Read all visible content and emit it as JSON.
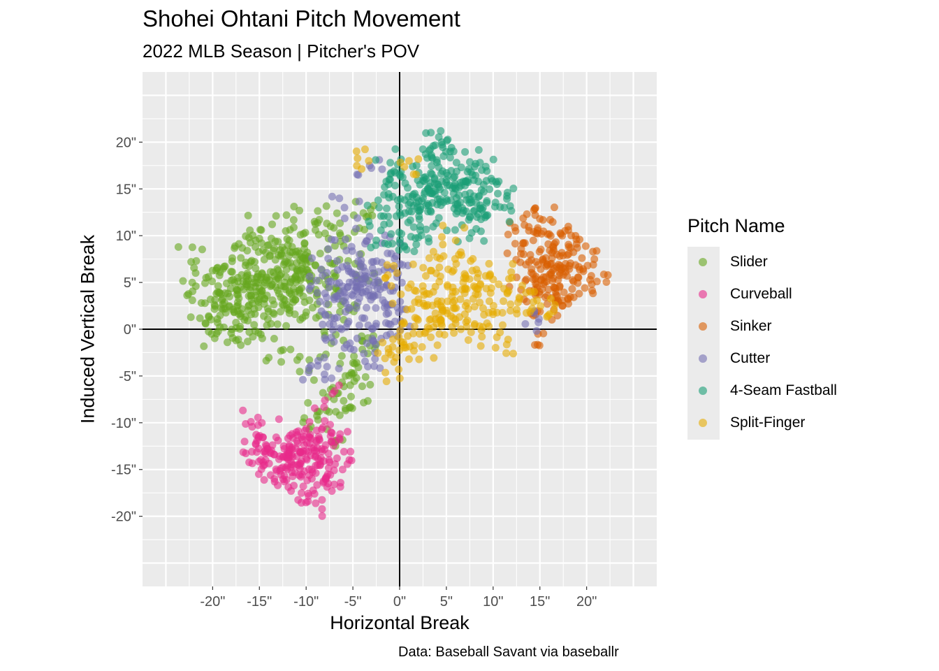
{
  "chart_data": {
    "type": "scatter",
    "title": "Shohei Ohtani Pitch Movement",
    "subtitle": "2022 MLB Season | Pitcher's POV",
    "xlabel": "Horizontal Break",
    "ylabel": "Induced Vertical Break",
    "caption": "Data: Baseball Savant via baseballr",
    "xlim": [
      -27.5,
      27.5
    ],
    "ylim": [
      -27.5,
      27.5
    ],
    "x_ticks": [
      "-20\"",
      "-15\"",
      "-10\"",
      "-5\"",
      "0\"",
      "5\"",
      "10\"",
      "15\"",
      "20\""
    ],
    "y_ticks": [
      "20\"",
      "15\"",
      "10\"",
      "5\"",
      "0\"",
      "-5\"",
      "-10\"",
      "-15\"",
      "-20\""
    ],
    "grid": true,
    "legend_title": "Pitch Name",
    "legend_position": "right",
    "series": [
      {
        "name": "Slider",
        "color": "#66a61e",
        "points": [
          [
            -22.3,
            7.2
          ],
          [
            -21.8,
            4.6
          ],
          [
            -21.2,
            2.8
          ],
          [
            -20.7,
            5.5
          ],
          [
            -20.4,
            1.3
          ],
          [
            -20.1,
            -0.5
          ],
          [
            -19.6,
            3.8
          ],
          [
            -19.2,
            6.1
          ],
          [
            -18.8,
            0.2
          ],
          [
            -18.5,
            4.9
          ],
          [
            -18.2,
            2.4
          ],
          [
            -17.9,
            7.6
          ],
          [
            -17.5,
            -1.2
          ],
          [
            -17.2,
            3.3
          ],
          [
            -16.9,
            5.8
          ],
          [
            -16.6,
            1.0
          ],
          [
            -16.3,
            8.4
          ],
          [
            -16.0,
            4.2
          ],
          [
            -15.7,
            -0.8
          ],
          [
            -15.4,
            6.5
          ],
          [
            -15.1,
            2.9
          ],
          [
            -14.8,
            10.6
          ],
          [
            -14.5,
            4.7
          ],
          [
            -14.2,
            0.4
          ],
          [
            -13.9,
            7.8
          ],
          [
            -13.6,
            3.1
          ],
          [
            -13.3,
            9.4
          ],
          [
            -13.0,
            5.5
          ],
          [
            -12.7,
            -2.3
          ],
          [
            -12.4,
            6.9
          ],
          [
            -12.1,
            12.2
          ],
          [
            -11.8,
            4.1
          ],
          [
            -11.5,
            8.8
          ],
          [
            -11.2,
            1.6
          ],
          [
            -10.9,
            6.3
          ],
          [
            -10.6,
            10.1
          ],
          [
            -10.3,
            3.5
          ],
          [
            -10.0,
            7.4
          ],
          [
            -9.7,
            -4.4
          ],
          [
            -9.4,
            5.2
          ],
          [
            -9.1,
            11.5
          ],
          [
            -8.8,
            2.7
          ],
          [
            -8.5,
            8.1
          ],
          [
            -8.2,
            -6.8
          ],
          [
            -7.9,
            4.8
          ],
          [
            -7.6,
            9.7
          ],
          [
            -7.3,
            -1.5
          ],
          [
            -7.0,
            6.0
          ],
          [
            -6.7,
            12.4
          ],
          [
            -6.4,
            -9.2
          ],
          [
            -6.1,
            3.0
          ],
          [
            -5.8,
            -5.0
          ],
          [
            -5.5,
            7.3
          ],
          [
            -5.2,
            -7.2
          ],
          [
            -4.9,
            1.9
          ],
          [
            -4.6,
            -3.6
          ],
          [
            -4.3,
            10.8
          ],
          [
            -4.0,
            -6.1
          ],
          [
            -3.7,
            5.4
          ],
          [
            -3.4,
            -2.6
          ],
          [
            -3.1,
            12.8
          ],
          [
            -2.8,
            -0.7
          ],
          [
            -17.0,
            4.5
          ],
          [
            -16.4,
            5.1
          ],
          [
            -15.9,
            3.6
          ],
          [
            -15.3,
            4.0
          ],
          [
            -14.7,
            5.9
          ],
          [
            -14.1,
            2.2
          ],
          [
            -13.5,
            6.1
          ],
          [
            -12.9,
            3.8
          ],
          [
            -12.3,
            5.0
          ],
          [
            -11.7,
            7.1
          ],
          [
            -11.1,
            5.6
          ],
          [
            -10.5,
            4.4
          ],
          [
            -16.2,
            2.0
          ],
          [
            -18.0,
            5.2
          ],
          [
            -19.0,
            3.1
          ],
          [
            -13.8,
            4.6
          ],
          [
            -12.6,
            7.9
          ],
          [
            -11.4,
            2.9
          ],
          [
            -10.2,
            8.6
          ],
          [
            -9.0,
            6.8
          ],
          [
            -15.5,
            7.2
          ],
          [
            -17.7,
            1.8
          ],
          [
            -14.0,
            9.0
          ],
          [
            -8.6,
            -8.8
          ],
          [
            -6.9,
            -12.0
          ],
          [
            -9.5,
            -10.4
          ]
        ]
      },
      {
        "name": "Curveball",
        "color": "#e7298a",
        "points": [
          [
            -15.8,
            -13.1
          ],
          [
            -15.1,
            -11.6
          ],
          [
            -14.6,
            -14.2
          ],
          [
            -14.1,
            -12.8
          ],
          [
            -13.8,
            -15.6
          ],
          [
            -13.4,
            -13.4
          ],
          [
            -13.0,
            -11.9
          ],
          [
            -12.7,
            -14.9
          ],
          [
            -12.4,
            -12.5
          ],
          [
            -12.1,
            -16.1
          ],
          [
            -11.8,
            -13.7
          ],
          [
            -11.5,
            -11.2
          ],
          [
            -11.2,
            -15.3
          ],
          [
            -10.9,
            -12.2
          ],
          [
            -10.6,
            -14.4
          ],
          [
            -10.3,
            -16.8
          ],
          [
            -10.0,
            -13.0
          ],
          [
            -9.7,
            -11.5
          ],
          [
            -9.4,
            -15.0
          ],
          [
            -9.1,
            -17.6
          ],
          [
            -8.8,
            -12.7
          ],
          [
            -8.5,
            -14.1
          ],
          [
            -8.2,
            -10.5
          ],
          [
            -7.9,
            -15.9
          ],
          [
            -7.6,
            -13.3
          ],
          [
            -7.3,
            -12.0
          ],
          [
            -7.0,
            -16.6
          ],
          [
            -6.7,
            -13.8
          ],
          [
            -6.4,
            -11.8
          ],
          [
            -6.1,
            -15.0
          ],
          [
            -9.8,
            -18.4
          ],
          [
            -15.9,
            -9.9
          ],
          [
            -8.0,
            -7.6
          ],
          [
            -12.9,
            -13.9
          ],
          [
            -11.0,
            -13.6
          ],
          [
            -10.2,
            -12.4
          ],
          [
            -12.0,
            -14.6
          ],
          [
            -13.6,
            -12.4
          ],
          [
            -11.6,
            -14.2
          ],
          [
            -9.5,
            -13.5
          ]
        ]
      },
      {
        "name": "Sinker",
        "color": "#d95f02",
        "points": [
          [
            12.4,
            10.5
          ],
          [
            13.0,
            8.6
          ],
          [
            13.5,
            6.9
          ],
          [
            13.9,
            4.1
          ],
          [
            14.3,
            9.5
          ],
          [
            14.6,
            5.6
          ],
          [
            15.0,
            11.8
          ],
          [
            15.3,
            7.4
          ],
          [
            15.6,
            3.4
          ],
          [
            15.9,
            9.1
          ],
          [
            16.2,
            5.8
          ],
          [
            16.5,
            2.1
          ],
          [
            16.8,
            8.0
          ],
          [
            17.1,
            4.5
          ],
          [
            17.4,
            10.0
          ],
          [
            17.7,
            6.5
          ],
          [
            18.0,
            3.3
          ],
          [
            18.3,
            8.7
          ],
          [
            18.6,
            5.1
          ],
          [
            18.9,
            9.6
          ],
          [
            19.2,
            3.8
          ],
          [
            19.5,
            7.6
          ],
          [
            20.1,
            6.8
          ],
          [
            21.1,
            5.1
          ],
          [
            14.8,
            -0.5
          ],
          [
            15.8,
            2.7
          ],
          [
            16.4,
            6.3
          ],
          [
            17.0,
            6.9
          ],
          [
            15.5,
            5.0
          ],
          [
            16.7,
            4.0
          ],
          [
            14.1,
            7.4
          ],
          [
            17.9,
            5.7
          ],
          [
            13.3,
            3.2
          ],
          [
            16.1,
            11.7
          ],
          [
            14.5,
            12.2
          ]
        ]
      },
      {
        "name": "Cutter",
        "color": "#7570b3",
        "points": [
          [
            -9.5,
            -3.9
          ],
          [
            -8.8,
            3.9
          ],
          [
            -8.4,
            6.4
          ],
          [
            -8.0,
            1.6
          ],
          [
            -7.6,
            5.1
          ],
          [
            -7.3,
            -0.9
          ],
          [
            -7.0,
            3.2
          ],
          [
            -6.7,
            7.3
          ],
          [
            -6.4,
            0.1
          ],
          [
            -6.1,
            4.6
          ],
          [
            -5.8,
            9.6
          ],
          [
            -5.5,
            2.3
          ],
          [
            -5.2,
            6.1
          ],
          [
            -4.9,
            -2.2
          ],
          [
            -4.6,
            4.4
          ],
          [
            -4.3,
            8.0
          ],
          [
            -4.0,
            1.2
          ],
          [
            -3.7,
            5.7
          ],
          [
            -3.4,
            -4.0
          ],
          [
            -3.1,
            3.6
          ],
          [
            -2.8,
            7.2
          ],
          [
            -2.5,
            0.6
          ],
          [
            -2.2,
            5.0
          ],
          [
            -1.9,
            9.2
          ],
          [
            -1.6,
            2.8
          ],
          [
            -1.3,
            6.6
          ],
          [
            -1.0,
            -0.5
          ],
          [
            -0.7,
            4.1
          ],
          [
            -0.4,
            7.8
          ],
          [
            -0.1,
            1.8
          ],
          [
            -3.2,
            17.5
          ],
          [
            -5.9,
            13.0
          ],
          [
            -6.5,
            -4.2
          ],
          [
            -3.5,
            -1.5
          ],
          [
            -4.8,
            5.9
          ],
          [
            -3.9,
            4.9
          ],
          [
            -5.1,
            3.7
          ],
          [
            -2.9,
            6.0
          ],
          [
            14.9,
            1.1
          ],
          [
            -1.8,
            3.1
          ]
        ]
      },
      {
        "name": "4-Seam Fastball",
        "color": "#1b9e77",
        "points": [
          [
            -2.2,
            13.0
          ],
          [
            -1.6,
            15.2
          ],
          [
            -1.1,
            11.3
          ],
          [
            -0.6,
            16.9
          ],
          [
            -0.2,
            13.8
          ],
          [
            0.2,
            10.2
          ],
          [
            0.6,
            15.6
          ],
          [
            1.0,
            12.6
          ],
          [
            1.4,
            17.4
          ],
          [
            1.8,
            14.1
          ],
          [
            2.2,
            11.0
          ],
          [
            2.6,
            16.2
          ],
          [
            3.0,
            13.4
          ],
          [
            3.4,
            18.6
          ],
          [
            3.8,
            14.8
          ],
          [
            4.2,
            11.9
          ],
          [
            4.6,
            16.9
          ],
          [
            5.0,
            13.9
          ],
          [
            5.4,
            19.0
          ],
          [
            5.8,
            15.3
          ],
          [
            6.2,
            12.6
          ],
          [
            6.6,
            17.3
          ],
          [
            7.0,
            14.4
          ],
          [
            7.4,
            11.7
          ],
          [
            7.8,
            16.5
          ],
          [
            8.2,
            13.5
          ],
          [
            8.6,
            17.8
          ],
          [
            9.0,
            14.7
          ],
          [
            9.4,
            12.2
          ],
          [
            9.8,
            16.1
          ],
          [
            10.2,
            13.1
          ],
          [
            10.6,
            15.8
          ],
          [
            11.2,
            13.0
          ],
          [
            -1.0,
            17.8
          ],
          [
            0.5,
            8.8
          ],
          [
            2.0,
            9.8
          ],
          [
            3.6,
            19.6
          ],
          [
            4.5,
            20.0
          ],
          [
            7.7,
            10.3
          ],
          [
            8.4,
            12.3
          ],
          [
            -2.5,
            9.5
          ],
          [
            3.0,
            15.0
          ],
          [
            4.0,
            15.5
          ],
          [
            5.0,
            16.0
          ],
          [
            6.0,
            15.0
          ],
          [
            2.5,
            14.0
          ],
          [
            3.5,
            13.5
          ],
          [
            4.8,
            14.6
          ],
          [
            1.5,
            13.2
          ],
          [
            6.8,
            15.8
          ]
        ]
      },
      {
        "name": "Split-Finger",
        "color": "#e6ab02",
        "points": [
          [
            -3.3,
            18.0
          ],
          [
            -1.2,
            -2.1
          ],
          [
            -0.6,
            -3.5
          ],
          [
            -0.1,
            -4.3
          ],
          [
            0.4,
            -1.4
          ],
          [
            0.8,
            2.1
          ],
          [
            1.2,
            4.8
          ],
          [
            1.6,
            0.3
          ],
          [
            2.0,
            3.2
          ],
          [
            2.4,
            -1.9
          ],
          [
            2.8,
            5.7
          ],
          [
            3.2,
            1.0
          ],
          [
            3.6,
            4.0
          ],
          [
            4.0,
            7.7
          ],
          [
            4.4,
            2.5
          ],
          [
            4.8,
            -0.6
          ],
          [
            5.2,
            6.4
          ],
          [
            5.6,
            3.5
          ],
          [
            6.0,
            9.5
          ],
          [
            6.4,
            1.3
          ],
          [
            6.8,
            5.0
          ],
          [
            7.2,
            2.8
          ],
          [
            7.6,
            7.3
          ],
          [
            8.0,
            0.4
          ],
          [
            8.4,
            4.3
          ],
          [
            8.8,
            -0.8
          ],
          [
            9.2,
            5.7
          ],
          [
            9.6,
            3.0
          ],
          [
            10.0,
            1.6
          ],
          [
            10.6,
            4.8
          ],
          [
            11.1,
            3.0
          ],
          [
            11.6,
            -1.1
          ],
          [
            12.0,
            5.5
          ],
          [
            12.8,
            3.4
          ],
          [
            14.7,
            3.1
          ],
          [
            16.6,
            2.6
          ],
          [
            1.0,
            18.0
          ],
          [
            -1.5,
            5.5
          ],
          [
            5.0,
            2.0
          ],
          [
            6.5,
            3.2
          ],
          [
            4.2,
            1.2
          ],
          [
            5.8,
            -0.4
          ],
          [
            3.0,
            2.6
          ],
          [
            7.0,
            4.4
          ]
        ]
      }
    ]
  }
}
